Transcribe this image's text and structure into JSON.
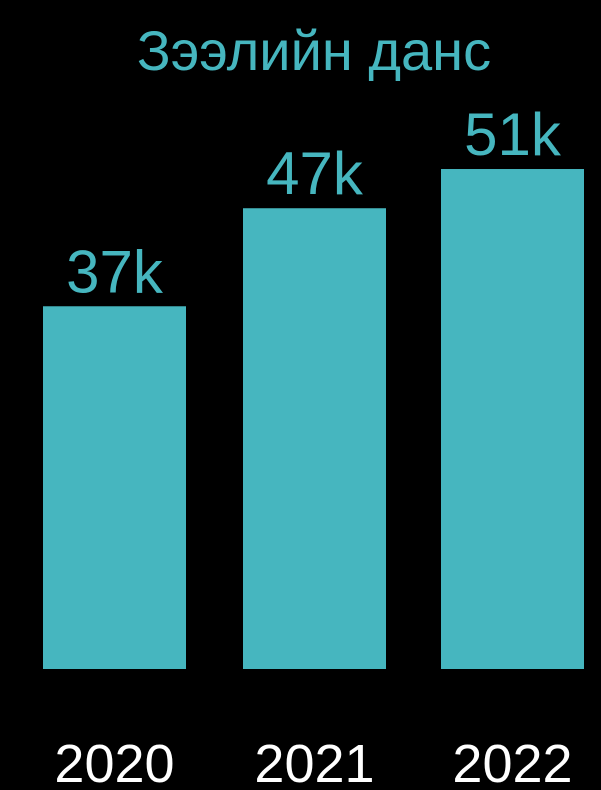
{
  "chart_data": {
    "type": "bar",
    "title": "Зээлийн данс",
    "categories": [
      "2020",
      "2021",
      "2022"
    ],
    "values": [
      37,
      47,
      51
    ],
    "value_labels": [
      "37k",
      "47k",
      "51k"
    ],
    "ylim": [
      0,
      56
    ],
    "grid": false,
    "legend": "none",
    "colors": {
      "background": "#000000",
      "bar": "#46B6BF",
      "title": "#46B6BF",
      "data_label": "#46B6BF",
      "tick_label": "#FFFFFF"
    }
  }
}
